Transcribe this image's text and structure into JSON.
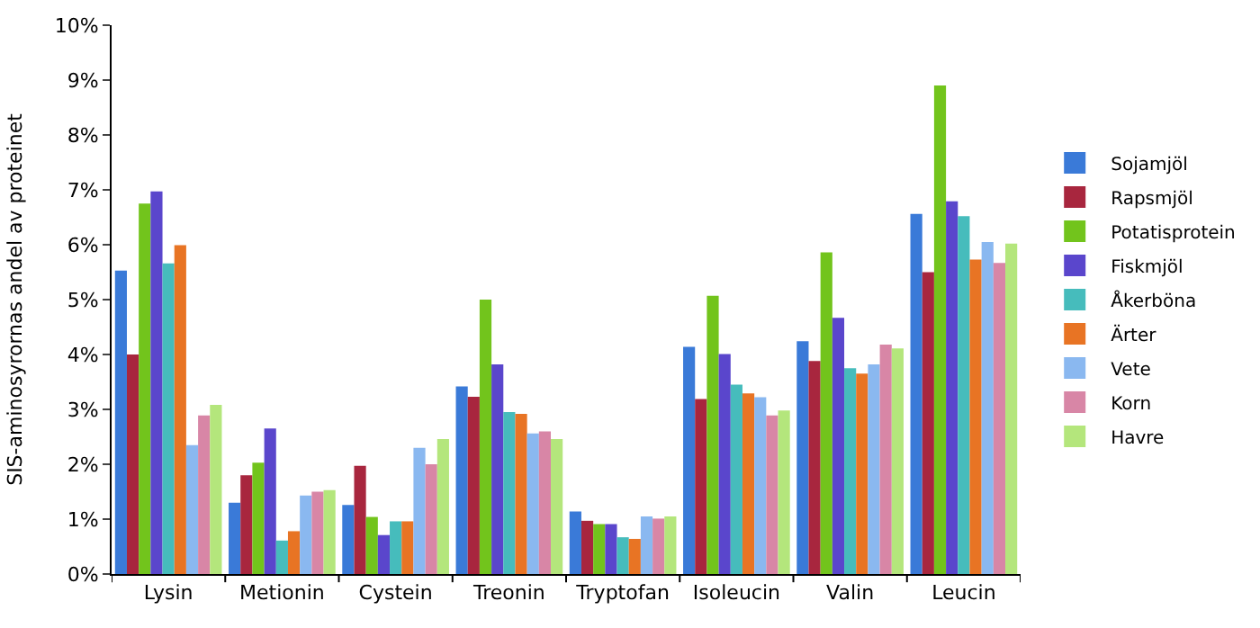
{
  "chart_data": {
    "type": "bar",
    "ylabel": "SIS-aminosyrornas andel av proteinet",
    "categories": [
      "Lysin",
      "Metionin",
      "Cystein",
      "Treonin",
      "Tryptofan",
      "Isoleucin",
      "Valin",
      "Leucin"
    ],
    "series": [
      {
        "name": "Sojamjöl",
        "color": "#3a7ad8",
        "values": [
          5.53,
          1.3,
          1.26,
          3.42,
          1.14,
          4.14,
          4.24,
          6.56
        ]
      },
      {
        "name": "Rapsmjöl",
        "color": "#a8263e",
        "values": [
          4.0,
          1.8,
          1.97,
          3.23,
          0.97,
          3.19,
          3.88,
          5.5
        ]
      },
      {
        "name": "Potatisprotein",
        "color": "#72c41c",
        "values": [
          6.75,
          2.03,
          1.04,
          5.0,
          0.91,
          5.07,
          5.86,
          8.9
        ]
      },
      {
        "name": "Fiskmjöl",
        "color": "#5a46cc",
        "values": [
          6.97,
          2.65,
          0.71,
          3.82,
          0.91,
          4.01,
          4.67,
          6.79
        ]
      },
      {
        "name": "Åkerböna",
        "color": "#46bcbc",
        "values": [
          5.66,
          0.61,
          0.96,
          2.95,
          0.67,
          3.45,
          3.75,
          6.52
        ]
      },
      {
        "name": "Ärter",
        "color": "#e87424",
        "values": [
          5.99,
          0.78,
          0.96,
          2.92,
          0.64,
          3.29,
          3.65,
          5.73
        ]
      },
      {
        "name": "Vete",
        "color": "#8ab8f0",
        "values": [
          2.35,
          1.43,
          2.3,
          2.56,
          1.05,
          3.22,
          3.82,
          6.05
        ]
      },
      {
        "name": "Korn",
        "color": "#d886a6",
        "values": [
          2.89,
          1.5,
          2.0,
          2.6,
          1.01,
          2.89,
          4.18,
          5.67
        ]
      },
      {
        "name": "Havre",
        "color": "#b4e67c",
        "values": [
          3.08,
          1.53,
          2.46,
          2.46,
          1.05,
          2.98,
          4.11,
          6.02
        ]
      }
    ],
    "ylim": [
      0,
      10
    ],
    "yticks": [
      {
        "value": 0,
        "label": "0%"
      },
      {
        "value": 1,
        "label": "1%"
      },
      {
        "value": 2,
        "label": "2%"
      },
      {
        "value": 3,
        "label": "3%"
      },
      {
        "value": 4,
        "label": "4%"
      },
      {
        "value": 5,
        "label": "5%"
      },
      {
        "value": 6,
        "label": "6%"
      },
      {
        "value": 7,
        "label": "7%"
      },
      {
        "value": 8,
        "label": "8%"
      },
      {
        "value": 9,
        "label": "9%"
      },
      {
        "value": 10,
        "label": "10%"
      }
    ],
    "legend": "right"
  }
}
